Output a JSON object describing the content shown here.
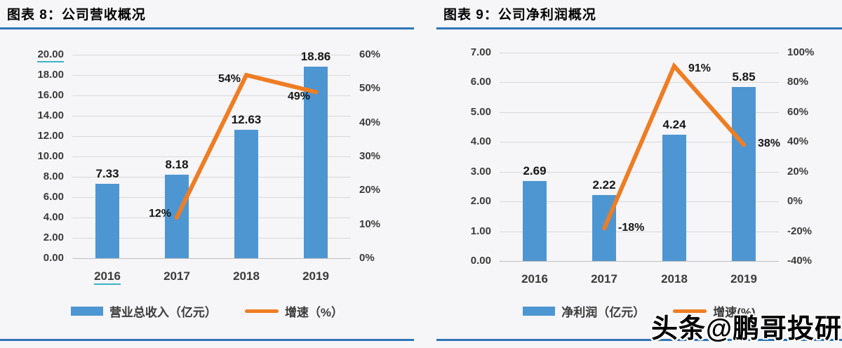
{
  "page": {
    "background": "#f6f5f8",
    "separator_color": "#2e75b6",
    "underline_color": "#3ab5c8",
    "watermark_text": "头条@鹏哥投研"
  },
  "chart_data": [
    {
      "type": "bar+line",
      "title": "图表 8：公司营收概况",
      "categories": [
        "2016",
        "2017",
        "2018",
        "2019"
      ],
      "series": [
        {
          "name": "营业总收入（亿元）",
          "type": "bar",
          "axis": "left",
          "values": [
            7.33,
            8.18,
            12.63,
            18.86
          ],
          "labels": [
            "7.33",
            "8.18",
            "12.63",
            "18.86"
          ],
          "color": "#4e96d2"
        },
        {
          "name": "增速（%）",
          "type": "line",
          "axis": "right",
          "values": [
            null,
            12,
            54,
            49
          ],
          "labels": [
            "",
            "12%",
            "54%",
            "49%"
          ],
          "color": "#ee7d23"
        }
      ],
      "left_axis": {
        "min": 0,
        "max": 20,
        "step": 2,
        "ticks": [
          "20.00",
          "18.00",
          "16.00",
          "14.00",
          "12.00",
          "10.00",
          "8.00",
          "6.00",
          "4.00",
          "2.00",
          "0.00"
        ]
      },
      "right_axis": {
        "min": 0,
        "max": 60,
        "step": 10,
        "ticks": [
          "60%",
          "50%",
          "40%",
          "30%",
          "20%",
          "10%",
          "0%"
        ]
      },
      "grid": true,
      "legend_position": "bottom",
      "layout": {
        "line_label_side": "left",
        "line_label_dy": [
          0,
          -3,
          8,
          9
        ],
        "underlined_tick": "20.00",
        "underlined_category": "2016"
      }
    },
    {
      "type": "bar+line",
      "title": "图表 9：公司净利润概况",
      "categories": [
        "2016",
        "2017",
        "2018",
        "2019"
      ],
      "series": [
        {
          "name": "净利润（亿元）",
          "type": "bar",
          "axis": "left",
          "values": [
            2.69,
            2.22,
            4.24,
            5.85
          ],
          "labels": [
            "2.69",
            "2.22",
            "4.24",
            "5.85"
          ],
          "color": "#4e96d2"
        },
        {
          "name": "增速(%)",
          "type": "line",
          "axis": "right",
          "values": [
            null,
            -18,
            91,
            38
          ],
          "labels": [
            "",
            "-18%",
            "91%",
            "38%"
          ],
          "color": "#ee7d23"
        }
      ],
      "left_axis": {
        "min": 0,
        "max": 7,
        "step": 1,
        "ticks": [
          "7.00",
          "6.00",
          "5.00",
          "4.00",
          "3.00",
          "2.00",
          "1.00",
          "0.00"
        ]
      },
      "right_axis": {
        "min": -40,
        "max": 100,
        "step": 20,
        "ticks": [
          "100%",
          "80%",
          "60%",
          "40%",
          "20%",
          "0%",
          "-20%",
          "-40%"
        ]
      },
      "grid": true,
      "legend_position": "bottom",
      "layout": {
        "line_label_side": "right",
        "line_label_dy": [
          0,
          2,
          6,
          0
        ]
      }
    }
  ]
}
